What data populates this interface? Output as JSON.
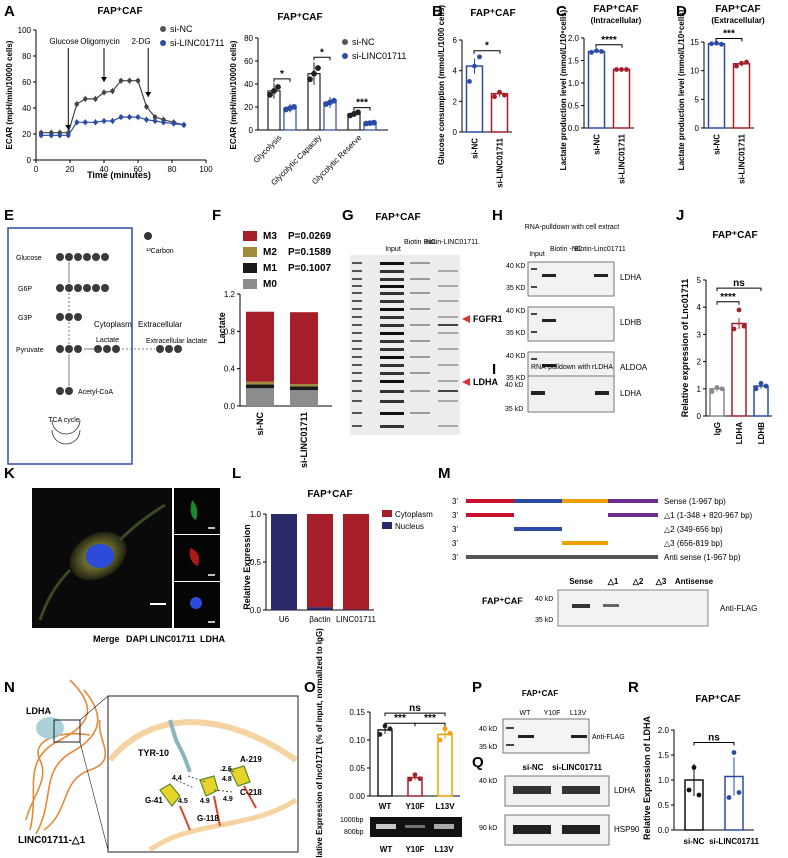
{
  "colors": {
    "blue": "#2b4ba6",
    "red": "#a61e2a",
    "black": "#000000",
    "grey": "#8c8c8c",
    "gold": "#9f8b3b",
    "orange": "#f0a000",
    "purple": "#6a2d8f"
  },
  "panels": {
    "A": "A",
    "B": "B",
    "C": "C",
    "D": "D",
    "E": "E",
    "F": "F",
    "G": "G",
    "H": "H",
    "I": "I",
    "J": "J",
    "K": "K",
    "L": "L",
    "M": "M",
    "N": "N",
    "O": "O",
    "P": "P",
    "Q": "Q",
    "R": "R"
  },
  "fap_caf": "FAP⁺CAF",
  "panelA": {
    "line": {
      "title": "FAP⁺CAF",
      "ylabel": "ECAR (mpH/min/10000 cells)",
      "xlabel": "Time (minutes)",
      "annotations": [
        "Glucose",
        "Oligomycin",
        "2-DG"
      ],
      "legend": [
        "si-NC",
        "si-LINC01711"
      ],
      "chart_data": {
        "type": "line",
        "xlim": [
          0,
          100
        ],
        "ylim": [
          0,
          100
        ],
        "xticks": [
          "0",
          "20",
          "40",
          "60",
          "80",
          "100"
        ],
        "yticks": [
          "0",
          "20",
          "40",
          "60",
          "80",
          "100"
        ],
        "x": [
          3,
          9,
          14,
          19,
          24,
          29,
          35,
          40,
          45,
          50,
          55,
          60,
          65,
          70,
          75,
          81,
          87
        ],
        "series": [
          {
            "name": "si-NC",
            "values": [
              21,
              21,
              21,
              21,
              43,
              47,
              47,
              52,
              53,
              61,
              61,
              61,
              41,
              33,
              31,
              29,
              27
            ]
          },
          {
            "name": "si-LINC01711",
            "values": [
              19,
              19,
              19,
              19,
              29,
              29,
              29,
              30,
              30,
              33,
              33,
              33,
              31,
              30,
              29,
              28,
              27
            ]
          }
        ]
      }
    },
    "bar": {
      "title": "FAP⁺CAF",
      "ylabel": "ECAR (mpH/min/10000 cells)",
      "legend": [
        "si-NC",
        "si-LINC01711"
      ],
      "chart_data": {
        "type": "bar",
        "categories": [
          "Glycolysis",
          "Glycolytic Capacity",
          "Glycolytic Reserve"
        ],
        "ylim": [
          0,
          80
        ],
        "yticks": [
          "0",
          "20",
          "40",
          "60",
          "80"
        ],
        "series": [
          {
            "name": "si-NC",
            "values": [
              34,
              49,
              14
            ]
          },
          {
            "name": "si-LINC01711",
            "values": [
              19,
              24,
              6
            ]
          }
        ],
        "significance": [
          "*",
          "*",
          "***"
        ]
      }
    }
  },
  "panelB": {
    "title": "FAP⁺CAF",
    "ylabel": "Glucose consumption (mmol/L/1000 cells)",
    "chart_data": {
      "type": "bar",
      "categories": [
        "si-NC",
        "si-LINC01711"
      ],
      "values": [
        4.3,
        2.5
      ],
      "ylim": [
        0,
        6
      ],
      "yticks": [
        "0",
        "2",
        "4",
        "6"
      ],
      "significance": "*"
    }
  },
  "panelC": {
    "title": "FAP⁺CAF",
    "subtitle": "(Intracellular)",
    "ylabel": "Lactate production level (mmol/L/10⁶cells)",
    "chart_data": {
      "type": "bar",
      "categories": [
        "si-NC",
        "si-LINC01711"
      ],
      "values": [
        1.7,
        1.3
      ],
      "ylim": [
        0,
        2.0
      ],
      "yticks": [
        "0.0",
        "0.5",
        "1.0",
        "1.5",
        "2.0"
      ],
      "significance": "****"
    }
  },
  "panelD": {
    "title": "FAP⁺CAF",
    "subtitle": "(Extracellular)",
    "ylabel": "Lactate production level (mmol/L/10⁶cells)",
    "chart_data": {
      "type": "bar",
      "categories": [
        "si-NC",
        "si-LINC01711"
      ],
      "values": [
        14.7,
        11.2
      ],
      "ylim": [
        0,
        15
      ],
      "yticks": [
        "0",
        "5",
        "10",
        "15"
      ],
      "significance": "***"
    }
  },
  "panelE": {
    "labels": [
      "Glucose",
      "G6P",
      "G3P",
      "Pyruvate",
      "Lactate",
      "Acetyl-CoA",
      "TCA cycle",
      "Cytoplasm",
      "Extracellular",
      "Extracellular lactate",
      "¹³Carbon"
    ]
  },
  "panelF": {
    "ylabel": "Lactate",
    "legend": [
      {
        "name": "M3",
        "p": "P=0.0269"
      },
      {
        "name": "M2",
        "p": "P=0.1589"
      },
      {
        "name": "M1",
        "p": "P=0.1007"
      },
      {
        "name": "M0",
        "p": ""
      }
    ],
    "chart_data": {
      "type": "bar",
      "categories": [
        "si-NC",
        "si-LINC01711"
      ],
      "ylim": [
        0,
        1.2
      ],
      "yticks": [
        "0.0",
        "0.4",
        "0.8",
        "1.2"
      ],
      "series": [
        {
          "name": "M0",
          "values": [
            0.19,
            0.17
          ]
        },
        {
          "name": "M1",
          "values": [
            0.04,
            0.04
          ]
        },
        {
          "name": "M2",
          "values": [
            0.03,
            0.025
          ]
        },
        {
          "name": "M3",
          "values": [
            0.75,
            0.77
          ]
        }
      ]
    }
  },
  "panelG": {
    "title": "FAP⁺CAF",
    "lanes": [
      "Input",
      "Biotin -NC",
      "Biotin-LINC01711"
    ],
    "markers": [
      "FGFR1",
      "LDHA"
    ]
  },
  "panelH": {
    "header": "RNA-pulldown with cell extract",
    "lanes": [
      "Input",
      "Biotin -NC",
      "Biotin-Linc01711"
    ],
    "sizes": [
      "40 KD",
      "35 KD"
    ],
    "blots": [
      "LDHA",
      "LDHB",
      "ALDOA"
    ]
  },
  "panelI": {
    "header": "RNA-pulldown with rLDHA",
    "sizes": [
      "40 kD",
      "35 kD"
    ],
    "blot": "LDHA"
  },
  "panelJ": {
    "title": "FAP⁺CAF",
    "ylabel": "Relative expression of Lnc01711",
    "chart_data": {
      "type": "bar",
      "categories": [
        "IgG",
        "LDHA",
        "LDHB"
      ],
      "values": [
        1.0,
        3.4,
        1.1
      ],
      "ylim": [
        0,
        5
      ],
      "yticks": [
        "0",
        "1",
        "2",
        "3",
        "4",
        "5"
      ],
      "significance": [
        "****",
        "ns"
      ]
    }
  },
  "panelK": {
    "caption": [
      "Merge",
      "DAPI",
      "LINC01711",
      "LDHA"
    ]
  },
  "panelL": {
    "title": "FAP⁺CAF",
    "ylabel": "Relative Expression",
    "legend": [
      "Cytoplasm",
      "Nucleus"
    ],
    "chart_data": {
      "type": "bar",
      "categories": [
        "U6",
        "βactin",
        "LINC01711"
      ],
      "ylim": [
        0,
        1.0
      ],
      "yticks": [
        "0.0",
        "0.5",
        "1.0"
      ],
      "series": [
        {
          "name": "Nucleus",
          "values": [
            1.0,
            0.03,
            0.005
          ]
        },
        {
          "name": "Cytoplasm",
          "values": [
            0.0,
            0.97,
            0.995
          ]
        }
      ]
    }
  },
  "panelM": {
    "constructs": [
      "Sense (1-967 bp)",
      "△1 (1-348 + 820-967 bp)",
      "△2 (349-656 bp)",
      "△3 (656-819 bp)",
      "Anti sense (1-967 bp)"
    ],
    "prime": "3'",
    "lanes": [
      "Sense",
      "△1",
      "△2",
      "△3",
      "Antisense"
    ],
    "sizes": [
      "40 kD",
      "35 kD"
    ],
    "blot": "Anti-FLAG",
    "cell": "FAP⁺CAF"
  },
  "panelN": {
    "labels": [
      "LDHA",
      "LINC01711-△1",
      "TYR-10",
      "A-219",
      "C-218",
      "G-41",
      "G-118"
    ],
    "distances": [
      "2.6",
      "4.4",
      "4.5",
      "4.8",
      "4.9",
      "4.9"
    ]
  },
  "panelO": {
    "ylabel": "Relative Expression of lnc01711 (% of input, normalized to IgG)",
    "chart_data": {
      "type": "bar",
      "categories": [
        "WT",
        "Y10F",
        "L13V"
      ],
      "values": [
        0.118,
        0.033,
        0.11
      ],
      "ylim": [
        0,
        0.15
      ],
      "yticks": [
        "0.00",
        "0.05",
        "0.10",
        "0.15"
      ],
      "significance": [
        "***",
        "***",
        "ns"
      ]
    },
    "gel_sizes": [
      "1000bp",
      "800bp"
    ],
    "gel_lanes": [
      "WT",
      "Y10F",
      "L13V"
    ]
  },
  "panelP": {
    "title": "FAP⁺CAF",
    "lanes": [
      "WT",
      "Y10F",
      "L13V"
    ],
    "sizes": [
      "40 kD",
      "35 kD"
    ],
    "blot": "Anti-FLAG"
  },
  "panelQ": {
    "lanes": [
      "si-NC",
      "si-LINC01711"
    ],
    "sizes": [
      "40 kD",
      "90 kD"
    ],
    "blots": [
      "LDHA",
      "HSP90"
    ]
  },
  "panelR": {
    "title": "FAP⁺CAF",
    "ylabel": "Relative Expression of LDHA",
    "chart_data": {
      "type": "bar",
      "categories": [
        "si-NC",
        "si-LINC01711"
      ],
      "values": [
        1.0,
        1.07
      ],
      "ylim": [
        0,
        2.0
      ],
      "yticks": [
        "0.0",
        "0.5",
        "1.0",
        "1.5",
        "2.0"
      ],
      "significance": "ns"
    }
  }
}
